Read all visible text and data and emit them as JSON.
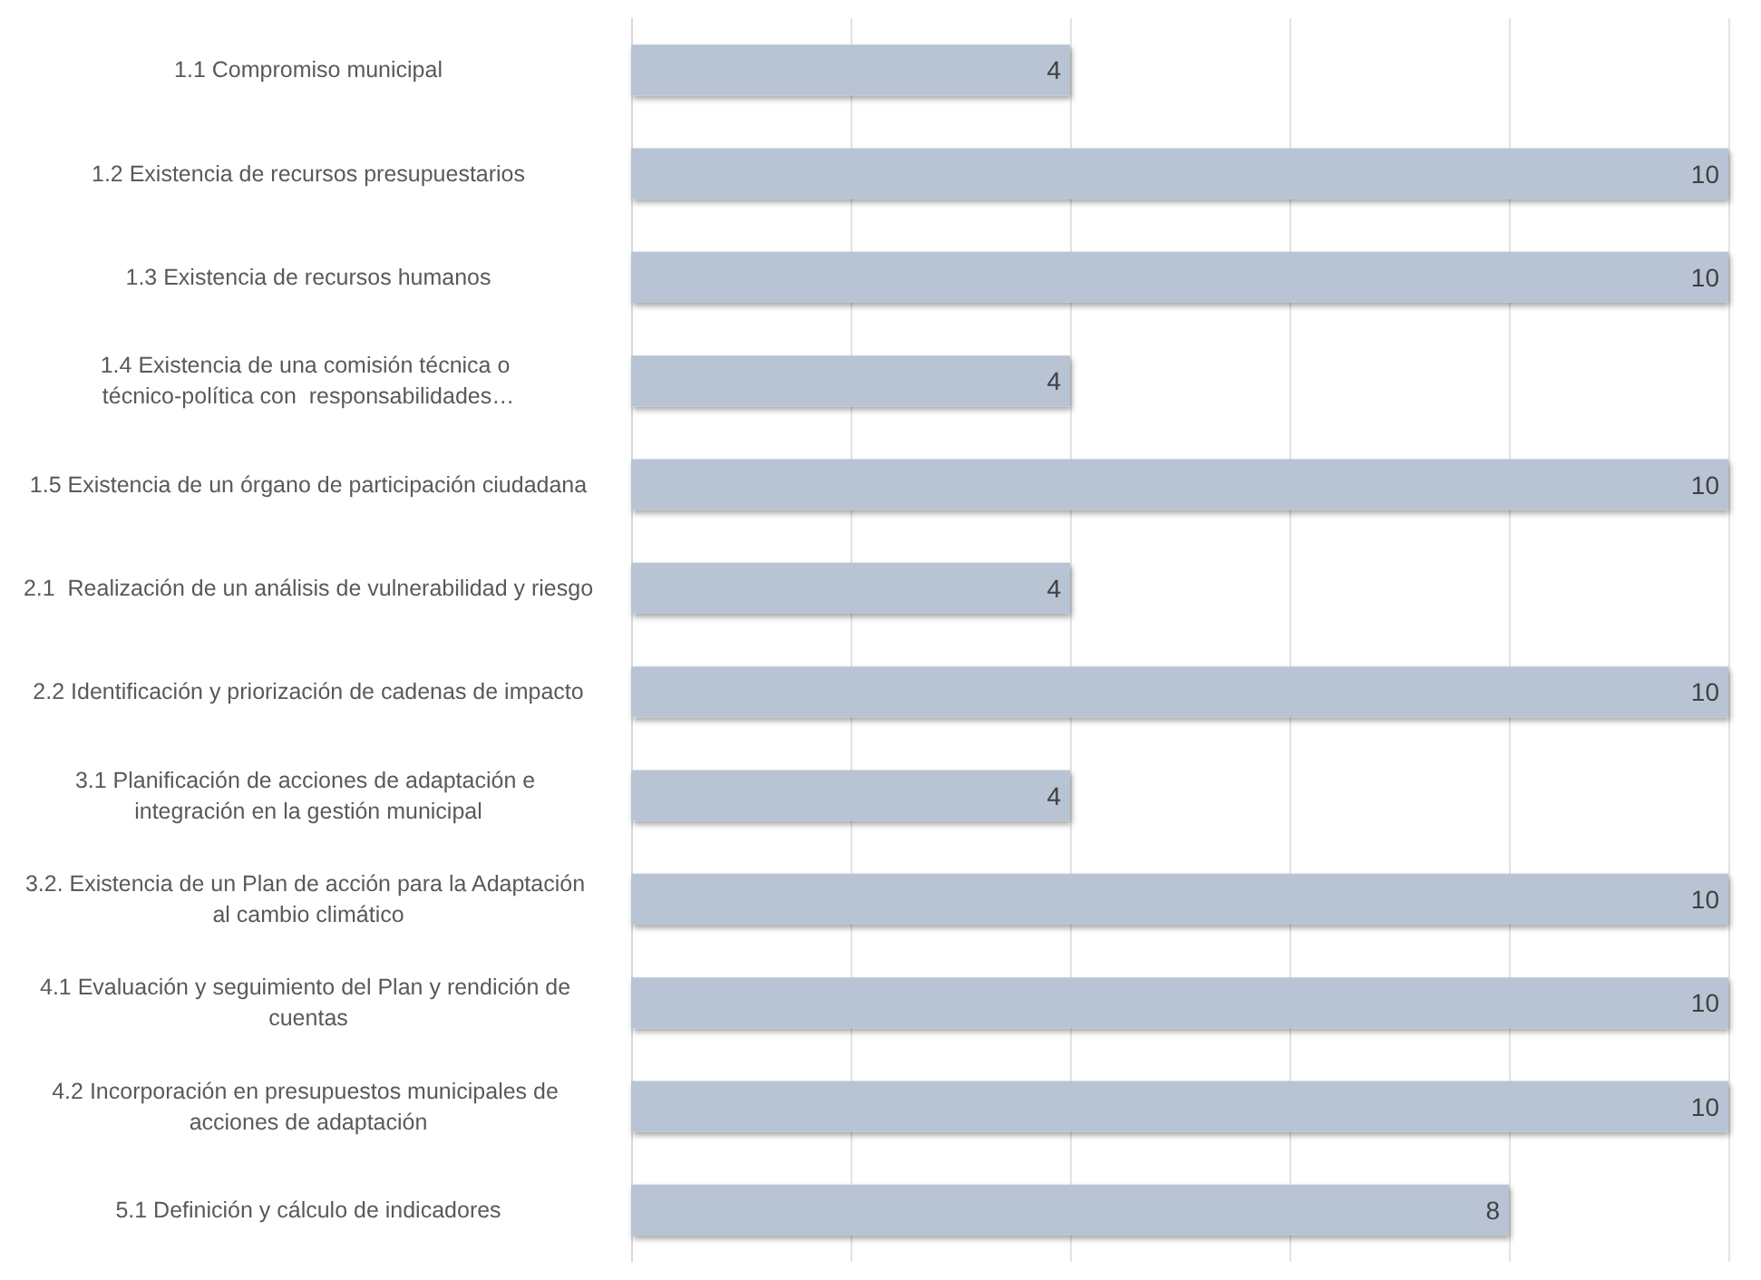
{
  "chart_data": {
    "type": "bar",
    "orientation": "horizontal",
    "categories": [
      "1.1 Compromiso municipal",
      "1.2 Existencia de recursos presupuestarios",
      "1.3 Existencia de recursos humanos",
      "1.4 Existencia de una comisión técnica o técnico-política con  responsabilidades…",
      "1.5 Existencia de un órgano de participación ciudadana",
      "2.1  Realización de un análisis de vulnerabilidad y riesgo",
      "2.2 Identificación y priorización de cadenas de impacto",
      "3.1 Planificación de acciones de adaptación e integración en la gestión municipal",
      "3.2. Existencia de un Plan de acción para la Adaptación al cambio climático",
      "4.1 Evaluación y seguimiento del Plan y rendición de cuentas",
      "4.2 Incorporación en presupuestos municipales de acciones de adaptación",
      "5.1 Definición y cálculo de indicadores"
    ],
    "values": [
      4,
      10,
      10,
      4,
      10,
      4,
      10,
      4,
      10,
      10,
      10,
      8
    ],
    "color": "#b8c4d4",
    "xlim": [
      0,
      10
    ],
    "xticks": [
      {
        "value": 0,
        "label": null
      },
      {
        "value": 2,
        "label": null
      },
      {
        "value": 4,
        "label": null
      },
      {
        "value": 6,
        "label": null
      },
      {
        "value": 8,
        "label": null
      },
      {
        "value": 10,
        "label": null
      }
    ],
    "grid": "x",
    "data_labels": true,
    "tick_labels": "y"
  }
}
